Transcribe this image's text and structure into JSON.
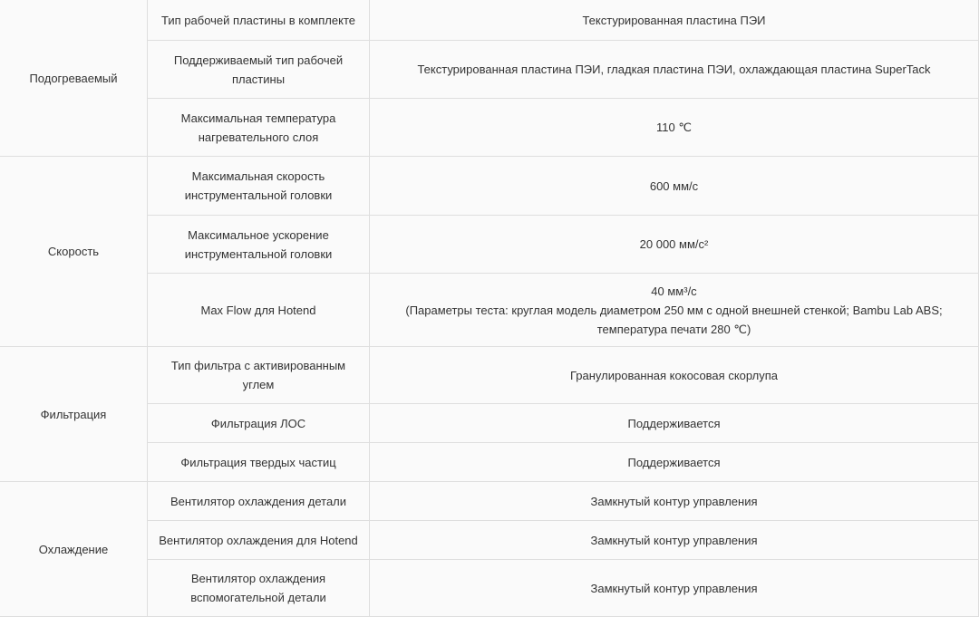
{
  "groups": [
    {
      "category": "Подогреваемый",
      "rows": [
        {
          "name": "Тип рабочей пластины в комплекте",
          "value": "Текстурированная пластина ПЭИ"
        },
        {
          "name": "Поддерживаемый тип рабочей пластины",
          "value": "Текстурированная пластина ПЭИ, гладкая пластина ПЭИ, охлаждающая пластина SuperTack"
        },
        {
          "name": "Максимальная температура нагревательного слоя",
          "value": "110 ℃"
        }
      ]
    },
    {
      "category": "Скорость",
      "rows": [
        {
          "name": "Максимальная скорость инструментальной головки",
          "value": "600 мм/с"
        },
        {
          "name": "Максимальное ускорение инструментальной головки",
          "value": "20 000 мм/с²"
        },
        {
          "name": "Max Flow для Hotend",
          "value": "40 мм³/с",
          "note": "(Параметры теста: круглая модель диаметром 250 мм с одной внешней стенкой; Bambu Lab ABS; температура печати 280 ℃)"
        }
      ]
    },
    {
      "category": "Фильтрация",
      "rows": [
        {
          "name": "Тип фильтра с активированным углем",
          "value": "Гранулированная кокосовая скорлупа"
        },
        {
          "name": "Фильтрация ЛОС",
          "value": "Поддерживается"
        },
        {
          "name": "Фильтрация твердых частиц",
          "value": "Поддерживается"
        }
      ]
    },
    {
      "category": "Охлаждение",
      "rows": [
        {
          "name": "Вентилятор охлаждения детали",
          "value": "Замкнутый контур управления"
        },
        {
          "name": "Вентилятор охлаждения для Hotend",
          "value": "Замкнутый контур управления"
        },
        {
          "name": "Вентилятор охлаждения вспомогательной детали",
          "value": "Замкнутый контур управления"
        }
      ]
    }
  ]
}
